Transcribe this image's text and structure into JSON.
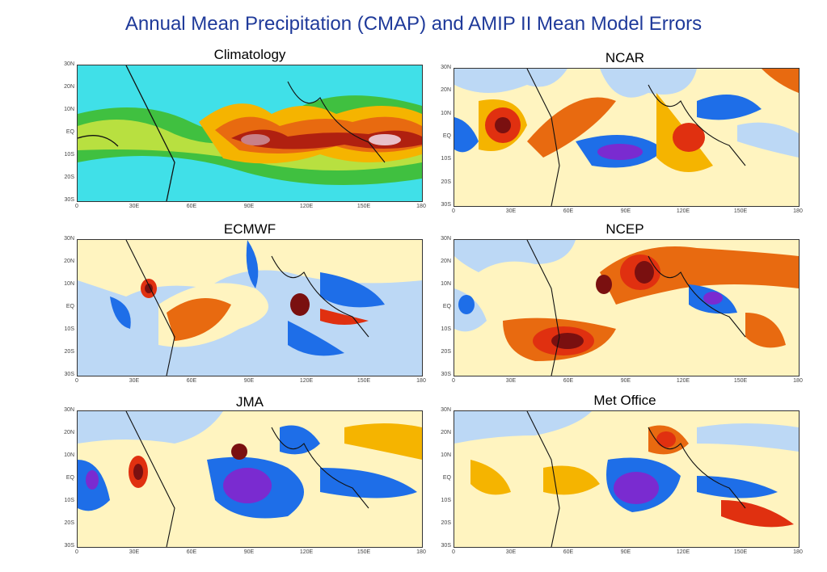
{
  "title": "Annual Mean Precipitation (CMAP) and AMIP II Mean Model Errors",
  "panels": [
    {
      "name": "Climatology"
    },
    {
      "name": "NCAR"
    },
    {
      "name": "ECMWF"
    },
    {
      "name": "NCEP"
    },
    {
      "name": "JMA"
    },
    {
      "name": "Met Office"
    }
  ],
  "axes": {
    "lat_ticks": [
      "30N",
      "20N",
      "10N",
      "EQ",
      "10S",
      "20S",
      "30S"
    ],
    "lon_ticks": [
      "0",
      "30E",
      "60E",
      "90E",
      "120E",
      "150E",
      "180"
    ]
  },
  "colors": {
    "title": "#1f3a9a",
    "wet_strong": "#7a1010",
    "wet": "#e03010",
    "moderate": "#f5b400",
    "light": "#fff4c0",
    "dry": "#bcd8f5",
    "dry_strong": "#1e6ee8",
    "very_dry": "#7a2bd0",
    "clim_low": "#40e0e8",
    "clim_mid": "#40c040"
  }
}
